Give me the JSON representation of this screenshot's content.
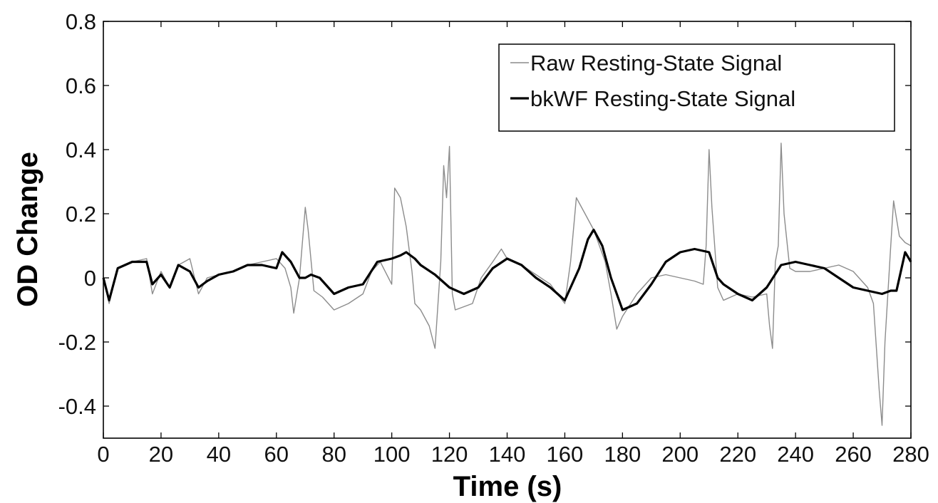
{
  "chart_data": {
    "type": "line",
    "title": "",
    "xlabel": "Time (s)",
    "ylabel": "OD Change",
    "xlim": [
      0,
      280
    ],
    "ylim": [
      -0.5,
      0.8
    ],
    "xticks": [
      0,
      20,
      40,
      60,
      80,
      100,
      120,
      140,
      160,
      180,
      200,
      220,
      240,
      260,
      280
    ],
    "xtick_labels": [
      "0",
      "20",
      "40",
      "60",
      "80",
      "100",
      "120",
      "140",
      "160",
      "180",
      "200",
      "220",
      "240",
      "260",
      "280"
    ],
    "yticks": [
      0.8,
      0.6,
      0.4,
      0.2,
      0,
      -0.2,
      -0.4
    ],
    "ytick_labels": [
      "0.8",
      "0.6",
      "0.4",
      "0.2",
      "0",
      "-0.2",
      "-0.4"
    ],
    "grid": false,
    "legend_position": "top-right",
    "series": [
      {
        "name": "Raw Resting-State Signal",
        "color": "#8c8c8c",
        "x": [
          0,
          2,
          5,
          10,
          15,
          17,
          20,
          23,
          26,
          30,
          33,
          36,
          40,
          45,
          50,
          55,
          60,
          63,
          65,
          66,
          68,
          70,
          71,
          73,
          76,
          80,
          85,
          90,
          93,
          96,
          100,
          101,
          103,
          105,
          107,
          108,
          110,
          113,
          115,
          117,
          118,
          119,
          120,
          121,
          122,
          125,
          128,
          131,
          135,
          138,
          140,
          145,
          150,
          155,
          160,
          162,
          164,
          167,
          170,
          174,
          176,
          178,
          180,
          185,
          190,
          195,
          200,
          205,
          208,
          209,
          210,
          211,
          213,
          215,
          220,
          225,
          230,
          231,
          232,
          233,
          234,
          235,
          236,
          238,
          240,
          245,
          250,
          255,
          260,
          265,
          267,
          269,
          270,
          271,
          273,
          274,
          276,
          278,
          280
        ],
        "y": [
          0,
          -0.08,
          0.03,
          0.05,
          0.06,
          -0.05,
          0.02,
          -0.03,
          0.04,
          0.06,
          -0.05,
          0.0,
          0.01,
          0.02,
          0.04,
          0.05,
          0.06,
          0.03,
          -0.03,
          -0.11,
          0.0,
          0.22,
          0.15,
          -0.04,
          -0.06,
          -0.1,
          -0.08,
          -0.05,
          0.02,
          0.05,
          -0.02,
          0.28,
          0.25,
          0.16,
          0.02,
          -0.08,
          -0.1,
          -0.15,
          -0.22,
          0.05,
          0.35,
          0.25,
          0.41,
          -0.05,
          -0.1,
          -0.09,
          -0.08,
          0.0,
          0.05,
          0.09,
          0.06,
          0.04,
          0.01,
          -0.02,
          -0.08,
          0.05,
          0.25,
          0.2,
          0.15,
          0.05,
          -0.05,
          -0.16,
          -0.12,
          -0.05,
          0.0,
          0.01,
          0.0,
          -0.01,
          -0.02,
          0.1,
          0.4,
          0.22,
          -0.03,
          -0.07,
          -0.05,
          -0.06,
          -0.05,
          -0.15,
          -0.22,
          0.05,
          0.1,
          0.42,
          0.2,
          0.03,
          0.02,
          0.02,
          0.03,
          0.04,
          0.02,
          -0.03,
          -0.08,
          -0.35,
          -0.46,
          -0.2,
          0.1,
          0.24,
          0.13,
          0.11,
          0.1
        ]
      },
      {
        "name": "bkWF Resting-State Signal",
        "color": "#000000",
        "x": [
          0,
          2,
          5,
          10,
          15,
          17,
          20,
          23,
          26,
          30,
          33,
          36,
          40,
          45,
          50,
          55,
          60,
          62,
          65,
          68,
          70,
          72,
          75,
          80,
          85,
          90,
          95,
          100,
          103,
          105,
          108,
          110,
          115,
          120,
          125,
          130,
          135,
          140,
          145,
          150,
          155,
          160,
          165,
          168,
          170,
          173,
          176,
          180,
          185,
          190,
          195,
          200,
          205,
          210,
          213,
          215,
          220,
          225,
          230,
          235,
          240,
          245,
          250,
          255,
          260,
          265,
          270,
          273,
          275,
          278,
          280
        ],
        "y": [
          0,
          -0.07,
          0.03,
          0.05,
          0.05,
          -0.02,
          0.01,
          -0.03,
          0.04,
          0.02,
          -0.03,
          -0.01,
          0.01,
          0.02,
          0.04,
          0.04,
          0.03,
          0.08,
          0.05,
          0.0,
          0.0,
          0.01,
          0.0,
          -0.05,
          -0.03,
          -0.02,
          0.05,
          0.06,
          0.07,
          0.08,
          0.06,
          0.04,
          0.01,
          -0.03,
          -0.05,
          -0.03,
          0.03,
          0.06,
          0.04,
          0.0,
          -0.03,
          -0.07,
          0.03,
          0.12,
          0.15,
          0.1,
          0.0,
          -0.1,
          -0.08,
          -0.02,
          0.05,
          0.08,
          0.09,
          0.08,
          0.0,
          -0.02,
          -0.05,
          -0.07,
          -0.03,
          0.04,
          0.05,
          0.04,
          0.03,
          0.0,
          -0.03,
          -0.04,
          -0.05,
          -0.04,
          -0.04,
          0.08,
          0.05
        ]
      }
    ]
  }
}
